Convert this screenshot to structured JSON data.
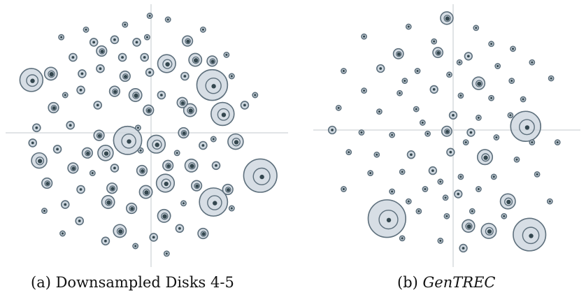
{
  "colors": {
    "disk_fill": "#c9d3dc",
    "disk_stroke": "#5d6f7c",
    "core_fill": "#34474f",
    "crosshair": "#d7dbde"
  },
  "captions": {
    "a": {
      "label": "(a)",
      "text": "Downsampled Disks 4-5"
    },
    "b": {
      "label": "(b)",
      "text": "GenTREC"
    }
  },
  "chart_data": [
    {
      "type": "scatter",
      "title": "",
      "caption": "(a) Downsampled Disks 4-5",
      "xlim": [
        -1,
        1
      ],
      "ylim": [
        -1,
        1
      ],
      "crosshair": [
        0,
        0
      ],
      "grid": false,
      "points": [
        {
          "x": -0.01,
          "y": 0.93,
          "r": 0.02
        },
        {
          "x": 0.13,
          "y": 0.9,
          "r": 0.02
        },
        {
          "x": -0.03,
          "y": 0.76,
          "r": 0.02
        },
        {
          "x": -0.69,
          "y": 0.76,
          "r": 0.02
        },
        {
          "x": -0.44,
          "y": 0.72,
          "r": 0.03
        },
        {
          "x": -0.28,
          "y": 0.74,
          "r": 0.03
        },
        {
          "x": -0.11,
          "y": 0.72,
          "r": 0.03
        },
        {
          "x": 0.28,
          "y": 0.73,
          "r": 0.04
        },
        {
          "x": -0.6,
          "y": 0.6,
          "r": 0.03
        },
        {
          "x": -0.38,
          "y": 0.65,
          "r": 0.04
        },
        {
          "x": -0.22,
          "y": 0.6,
          "r": 0.03
        },
        {
          "x": -0.05,
          "y": 0.6,
          "r": 0.03
        },
        {
          "x": 0.12,
          "y": 0.55,
          "r": 0.07
        },
        {
          "x": 0.34,
          "y": 0.58,
          "r": 0.05
        },
        {
          "x": 0.47,
          "y": 0.57,
          "r": 0.04
        },
        {
          "x": -0.92,
          "y": 0.42,
          "r": 0.09
        },
        {
          "x": -0.77,
          "y": 0.47,
          "r": 0.05
        },
        {
          "x": -0.53,
          "y": 0.47,
          "r": 0.03
        },
        {
          "x": -0.39,
          "y": 0.51,
          "r": 0.03
        },
        {
          "x": -0.2,
          "y": 0.45,
          "r": 0.04
        },
        {
          "x": -0.01,
          "y": 0.48,
          "r": 0.03
        },
        {
          "x": 0.26,
          "y": 0.45,
          "r": 0.03
        },
        {
          "x": 0.47,
          "y": 0.38,
          "r": 0.12
        },
        {
          "x": -0.54,
          "y": 0.34,
          "r": 0.03
        },
        {
          "x": -0.28,
          "y": 0.33,
          "r": 0.04
        },
        {
          "x": -0.12,
          "y": 0.3,
          "r": 0.05
        },
        {
          "x": 0.08,
          "y": 0.3,
          "r": 0.03
        },
        {
          "x": 0.24,
          "y": 0.24,
          "r": 0.04
        },
        {
          "x": 0.55,
          "y": 0.15,
          "r": 0.09
        },
        {
          "x": -0.75,
          "y": 0.2,
          "r": 0.04
        },
        {
          "x": -0.41,
          "y": 0.22,
          "r": 0.03
        },
        {
          "x": -0.02,
          "y": 0.18,
          "r": 0.04
        },
        {
          "x": 0.3,
          "y": 0.18,
          "r": 0.05
        },
        {
          "x": 0.72,
          "y": 0.22,
          "r": 0.03
        },
        {
          "x": -0.88,
          "y": 0.04,
          "r": 0.03
        },
        {
          "x": -0.62,
          "y": 0.06,
          "r": 0.03
        },
        {
          "x": -0.4,
          "y": -0.02,
          "r": 0.04
        },
        {
          "x": -0.18,
          "y": -0.06,
          "r": 0.11
        },
        {
          "x": 0.04,
          "y": -0.09,
          "r": 0.07
        },
        {
          "x": 0.25,
          "y": 0.0,
          "r": 0.04
        },
        {
          "x": 0.4,
          "y": -0.1,
          "r": 0.03
        },
        {
          "x": 0.65,
          "y": -0.07,
          "r": 0.06
        },
        {
          "x": -0.91,
          "y": -0.08,
          "r": 0.03
        },
        {
          "x": -0.72,
          "y": -0.13,
          "r": 0.03
        },
        {
          "x": -0.49,
          "y": -0.16,
          "r": 0.04
        },
        {
          "x": -0.35,
          "y": -0.16,
          "r": 0.06
        },
        {
          "x": -0.86,
          "y": -0.22,
          "r": 0.06
        },
        {
          "x": -0.6,
          "y": -0.28,
          "r": 0.04
        },
        {
          "x": -0.28,
          "y": -0.28,
          "r": 0.03
        },
        {
          "x": -0.07,
          "y": -0.3,
          "r": 0.04
        },
        {
          "x": 0.13,
          "y": -0.26,
          "r": 0.04
        },
        {
          "x": 0.31,
          "y": -0.26,
          "r": 0.05
        },
        {
          "x": 0.5,
          "y": -0.26,
          "r": 0.03
        },
        {
          "x": 0.84,
          "y": -0.34,
          "r": 0.13
        },
        {
          "x": -0.8,
          "y": -0.4,
          "r": 0.04
        },
        {
          "x": -0.54,
          "y": -0.45,
          "r": 0.03
        },
        {
          "x": -0.3,
          "y": -0.44,
          "r": 0.04
        },
        {
          "x": -0.04,
          "y": -0.47,
          "r": 0.05
        },
        {
          "x": 0.11,
          "y": -0.4,
          "r": 0.07
        },
        {
          "x": 0.35,
          "y": -0.42,
          "r": 0.04
        },
        {
          "x": 0.59,
          "y": -0.45,
          "r": 0.04
        },
        {
          "x": -0.66,
          "y": -0.57,
          "r": 0.03
        },
        {
          "x": -0.33,
          "y": -0.55,
          "r": 0.05
        },
        {
          "x": -0.15,
          "y": -0.6,
          "r": 0.04
        },
        {
          "x": 0.48,
          "y": -0.55,
          "r": 0.11
        },
        {
          "x": 0.1,
          "y": -0.66,
          "r": 0.05
        },
        {
          "x": -0.82,
          "y": -0.62,
          "r": 0.02
        },
        {
          "x": -0.55,
          "y": -0.7,
          "r": 0.03
        },
        {
          "x": -0.24,
          "y": -0.78,
          "r": 0.05
        },
        {
          "x": 0.02,
          "y": -0.83,
          "r": 0.03
        },
        {
          "x": 0.22,
          "y": -0.76,
          "r": 0.03
        },
        {
          "x": 0.4,
          "y": -0.8,
          "r": 0.04
        },
        {
          "x": -0.35,
          "y": -0.86,
          "r": 0.03
        },
        {
          "x": -0.12,
          "y": -0.9,
          "r": 0.02
        },
        {
          "x": 0.12,
          "y": -0.96,
          "r": 0.02
        },
        {
          "x": -0.5,
          "y": 0.82,
          "r": 0.02
        },
        {
          "x": 0.4,
          "y": 0.82,
          "r": 0.02
        },
        {
          "x": -0.2,
          "y": 0.86,
          "r": 0.02
        },
        {
          "x": 0.62,
          "y": 0.45,
          "r": 0.02
        },
        {
          "x": 0.8,
          "y": 0.3,
          "r": 0.02
        },
        {
          "x": -0.66,
          "y": 0.3,
          "r": 0.02
        },
        {
          "x": 0.48,
          "y": -0.05,
          "r": 0.02
        },
        {
          "x": -0.08,
          "y": -0.14,
          "r": 0.02
        },
        {
          "x": 0.2,
          "y": -0.16,
          "r": 0.02
        },
        {
          "x": -0.45,
          "y": -0.32,
          "r": 0.02
        },
        {
          "x": 0.62,
          "y": -0.6,
          "r": 0.02
        },
        {
          "x": -0.68,
          "y": -0.8,
          "r": 0.02
        },
        {
          "x": 0.25,
          "y": -0.56,
          "r": 0.02
        },
        {
          "x": -0.1,
          "y": 0.04,
          "r": 0.02
        },
        {
          "x": 0.58,
          "y": 0.62,
          "r": 0.02
        }
      ]
    },
    {
      "type": "scatter",
      "title": "",
      "caption": "(b) GenTREC",
      "xlim": [
        -1,
        1
      ],
      "ylim": [
        -1,
        1
      ],
      "crosshair": [
        0,
        0
      ],
      "grid": false,
      "points": [
        {
          "x": -0.05,
          "y": 0.91,
          "r": 0.05
        },
        {
          "x": -0.35,
          "y": 0.84,
          "r": 0.02
        },
        {
          "x": 0.18,
          "y": 0.83,
          "r": 0.02
        },
        {
          "x": -0.7,
          "y": 0.76,
          "r": 0.02
        },
        {
          "x": -0.15,
          "y": 0.72,
          "r": 0.02
        },
        {
          "x": 0.3,
          "y": 0.7,
          "r": 0.02
        },
        {
          "x": 0.47,
          "y": 0.66,
          "r": 0.02
        },
        {
          "x": -0.43,
          "y": 0.62,
          "r": 0.04
        },
        {
          "x": -0.12,
          "y": 0.63,
          "r": 0.04
        },
        {
          "x": 0.12,
          "y": 0.6,
          "r": 0.03
        },
        {
          "x": 0.62,
          "y": 0.55,
          "r": 0.02
        },
        {
          "x": -0.86,
          "y": 0.48,
          "r": 0.02
        },
        {
          "x": -0.57,
          "y": 0.5,
          "r": 0.03
        },
        {
          "x": -0.28,
          "y": 0.48,
          "r": 0.02
        },
        {
          "x": -0.03,
          "y": 0.45,
          "r": 0.02
        },
        {
          "x": 0.2,
          "y": 0.38,
          "r": 0.05
        },
        {
          "x": 0.46,
          "y": 0.4,
          "r": 0.02
        },
        {
          "x": 0.77,
          "y": 0.42,
          "r": 0.02
        },
        {
          "x": -0.7,
          "y": 0.32,
          "r": 0.02
        },
        {
          "x": -0.42,
          "y": 0.3,
          "r": 0.02
        },
        {
          "x": -0.15,
          "y": 0.33,
          "r": 0.03
        },
        {
          "x": 0.06,
          "y": 0.28,
          "r": 0.02
        },
        {
          "x": 0.3,
          "y": 0.26,
          "r": 0.02
        },
        {
          "x": 0.55,
          "y": 0.25,
          "r": 0.02
        },
        {
          "x": -0.9,
          "y": 0.18,
          "r": 0.02
        },
        {
          "x": -0.58,
          "y": 0.15,
          "r": 0.02
        },
        {
          "x": -0.29,
          "y": 0.17,
          "r": 0.02
        },
        {
          "x": 0.0,
          "y": 0.12,
          "r": 0.03
        },
        {
          "x": 0.2,
          "y": 0.1,
          "r": 0.02
        },
        {
          "x": 0.45,
          "y": 0.12,
          "r": 0.02
        },
        {
          "x": 0.57,
          "y": 0.03,
          "r": 0.12
        },
        {
          "x": -0.95,
          "y": 0.0,
          "r": 0.03
        },
        {
          "x": -0.72,
          "y": -0.02,
          "r": 0.02
        },
        {
          "x": -0.48,
          "y": -0.04,
          "r": 0.02
        },
        {
          "x": -0.2,
          "y": -0.03,
          "r": 0.02
        },
        {
          "x": -0.05,
          "y": -0.01,
          "r": 0.04
        },
        {
          "x": 0.14,
          "y": -0.02,
          "r": 0.03
        },
        {
          "x": 0.34,
          "y": -0.06,
          "r": 0.02
        },
        {
          "x": 0.82,
          "y": -0.1,
          "r": 0.02
        },
        {
          "x": -0.82,
          "y": -0.18,
          "r": 0.02
        },
        {
          "x": -0.6,
          "y": -0.2,
          "r": 0.02
        },
        {
          "x": -0.33,
          "y": -0.2,
          "r": 0.03
        },
        {
          "x": -0.02,
          "y": -0.18,
          "r": 0.03
        },
        {
          "x": 0.25,
          "y": -0.22,
          "r": 0.06
        },
        {
          "x": 0.5,
          "y": -0.24,
          "r": 0.02
        },
        {
          "x": -0.65,
          "y": -0.35,
          "r": 0.02
        },
        {
          "x": -0.4,
          "y": -0.34,
          "r": 0.02
        },
        {
          "x": -0.16,
          "y": -0.33,
          "r": 0.03
        },
        {
          "x": 0.06,
          "y": -0.38,
          "r": 0.02
        },
        {
          "x": 0.32,
          "y": -0.38,
          "r": 0.02
        },
        {
          "x": 0.66,
          "y": -0.36,
          "r": 0.02
        },
        {
          "x": -0.86,
          "y": -0.48,
          "r": 0.02
        },
        {
          "x": -0.48,
          "y": -0.5,
          "r": 0.02
        },
        {
          "x": -0.22,
          "y": -0.48,
          "r": 0.02
        },
        {
          "x": 0.04,
          "y": -0.52,
          "r": 0.03
        },
        {
          "x": 0.43,
          "y": -0.58,
          "r": 0.06
        },
        {
          "x": -0.06,
          "y": -0.55,
          "r": 0.02
        },
        {
          "x": 0.76,
          "y": -0.58,
          "r": 0.02
        },
        {
          "x": -0.52,
          "y": -0.72,
          "r": 0.15
        },
        {
          "x": -0.27,
          "y": -0.66,
          "r": 0.02
        },
        {
          "x": -0.05,
          "y": -0.7,
          "r": 0.02
        },
        {
          "x": 0.15,
          "y": -0.66,
          "r": 0.02
        },
        {
          "x": 0.4,
          "y": -0.7,
          "r": 0.02
        },
        {
          "x": 0.12,
          "y": -0.78,
          "r": 0.05
        },
        {
          "x": 0.28,
          "y": -0.82,
          "r": 0.06
        },
        {
          "x": 0.6,
          "y": -0.85,
          "r": 0.13
        },
        {
          "x": -0.4,
          "y": -0.88,
          "r": 0.02
        },
        {
          "x": -0.1,
          "y": -0.9,
          "r": 0.02
        },
        {
          "x": 0.08,
          "y": -0.96,
          "r": 0.03
        },
        {
          "x": 0.05,
          "y": 0.55,
          "r": 0.02
        },
        {
          "x": -0.38,
          "y": 0.4,
          "r": 0.02
        },
        {
          "x": 0.35,
          "y": 0.52,
          "r": 0.02
        },
        {
          "x": -0.24,
          "y": 0.06,
          "r": 0.02
        },
        {
          "x": 0.1,
          "y": -0.1,
          "r": 0.02
        },
        {
          "x": -0.1,
          "y": -0.42,
          "r": 0.02
        },
        {
          "x": 0.2,
          "y": -0.48,
          "r": 0.02
        },
        {
          "x": -0.35,
          "y": -0.58,
          "r": 0.02
        },
        {
          "x": 0.62,
          "y": -0.1,
          "r": 0.02
        }
      ]
    }
  ]
}
